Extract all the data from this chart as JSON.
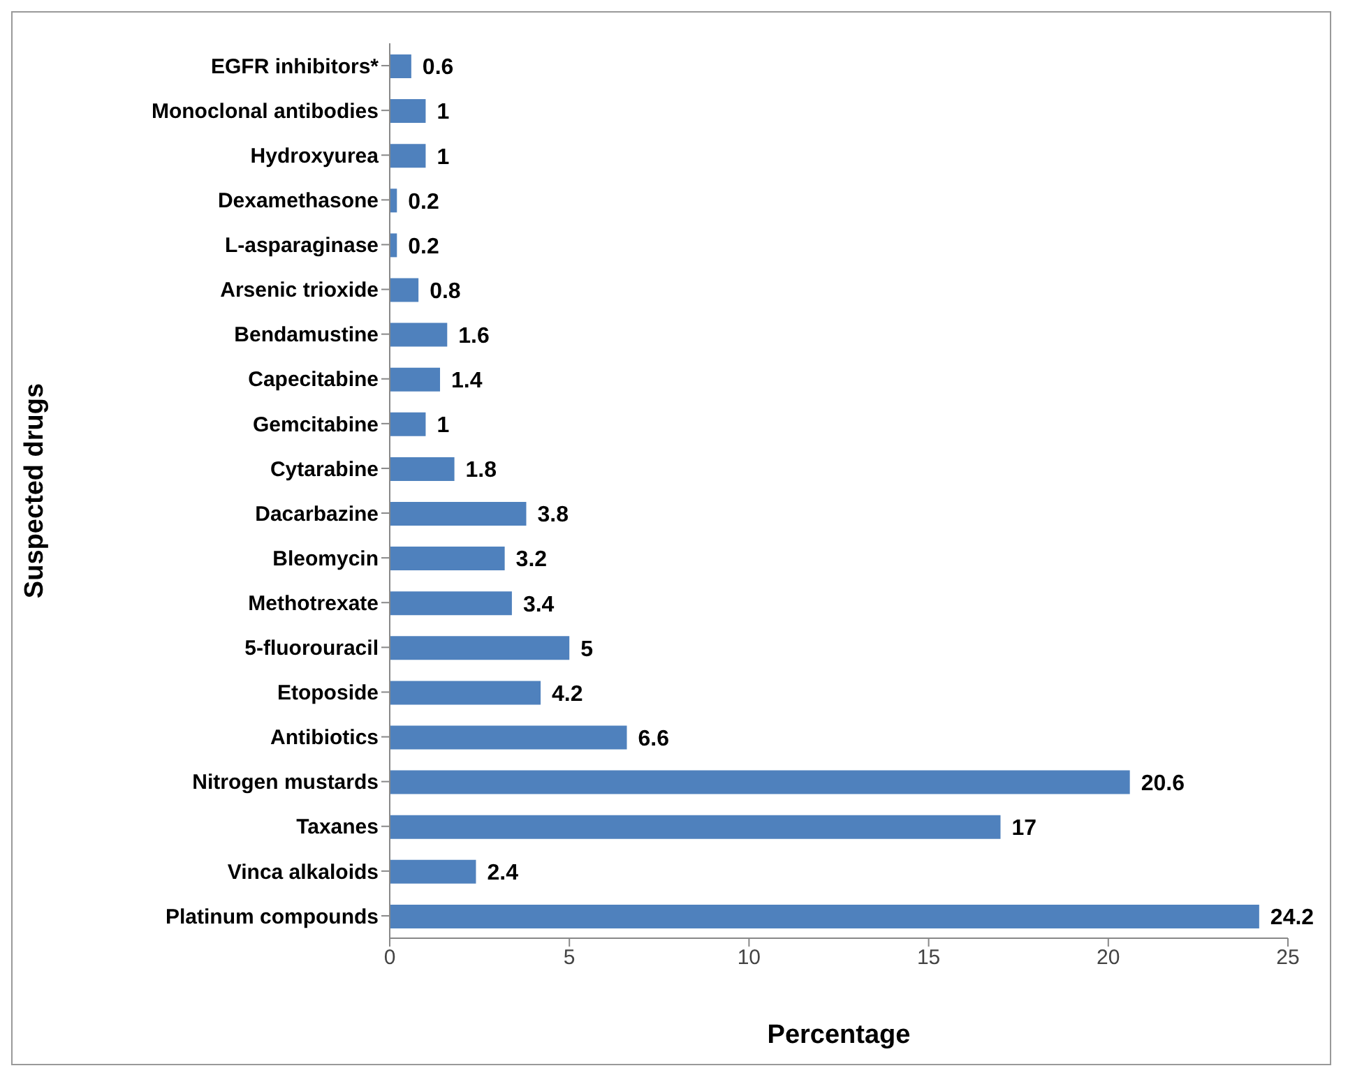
{
  "chart_data": {
    "type": "bar",
    "orientation": "horizontal",
    "xlabel": "Percentage",
    "ylabel": "Suspected drugs",
    "categories": [
      "EGFR inhibitors*",
      "Monoclonal antibodies",
      "Hydroxyurea",
      "Dexamethasone",
      "L-asparaginase",
      "Arsenic trioxide",
      "Bendamustine",
      "Capecitabine",
      "Gemcitabine",
      "Cytarabine",
      "Dacarbazine",
      "Bleomycin",
      "Methotrexate",
      "5-fluorouracil",
      "Etoposide",
      "Antibiotics",
      "Nitrogen mustards",
      "Taxanes",
      "Vinca alkaloids",
      "Platinum compounds"
    ],
    "values": [
      0.6,
      1,
      1,
      0.2,
      0.2,
      0.8,
      1.6,
      1.4,
      1,
      1.8,
      3.8,
      3.2,
      3.4,
      5,
      4.2,
      6.6,
      20.6,
      17,
      2.4,
      24.2
    ],
    "color": "#4f81bd",
    "xlim": [
      0,
      25
    ],
    "xticks": [
      0,
      5,
      10,
      15,
      20,
      25
    ],
    "data_labels": true
  }
}
